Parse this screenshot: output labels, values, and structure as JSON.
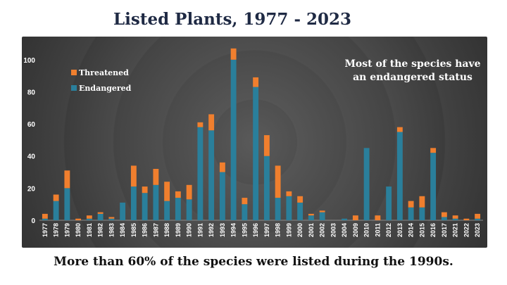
{
  "title": "Listed Plants, 1977 - 2023",
  "caption": "More than 60% of the species were listed during the 1990s.",
  "annotation": "Most of the species have an endangered status",
  "colors": {
    "endangered": "#2a7f9b",
    "threatened": "#f07f2e",
    "axis_text": "#ffffff"
  },
  "chart_data": {
    "type": "bar",
    "stacked": true,
    "categories": [
      "1977",
      "1978",
      "1979",
      "1980",
      "1981",
      "1982",
      "1983",
      "1984",
      "1985",
      "1986",
      "1987",
      "1988",
      "1989",
      "1990",
      "1991",
      "1992",
      "1993",
      "1994",
      "1995",
      "1996",
      "1997",
      "1998",
      "1999",
      "2000",
      "2001",
      "2002",
      "2003",
      "2004",
      "2009",
      "2010",
      "2011",
      "2012",
      "2013",
      "2014",
      "2015",
      "2016",
      "2017",
      "2021",
      "2022",
      "2023"
    ],
    "series": [
      {
        "name": "Endangered",
        "values": [
          1,
          12,
          20,
          0,
          1,
          4,
          1,
          11,
          21,
          17,
          22,
          12,
          14,
          13,
          58,
          56,
          30,
          100,
          10,
          83,
          40,
          14,
          15,
          11,
          3,
          5,
          0,
          1,
          0,
          45,
          0,
          21,
          55,
          8,
          8,
          42,
          2,
          1,
          0,
          1
        ]
      },
      {
        "name": "Threatened",
        "values": [
          3,
          4,
          11,
          1,
          2,
          1,
          1,
          0,
          13,
          4,
          10,
          12,
          4,
          9,
          3,
          10,
          6,
          7,
          4,
          6,
          13,
          20,
          3,
          4,
          1,
          1,
          0,
          0,
          3,
          0,
          3,
          0,
          3,
          4,
          7,
          3,
          3,
          2,
          1,
          3
        ]
      }
    ],
    "ylim": [
      0,
      110
    ],
    "yticks": [
      0,
      20,
      40,
      60,
      80,
      100
    ],
    "legend": "top-left",
    "grid": false
  }
}
